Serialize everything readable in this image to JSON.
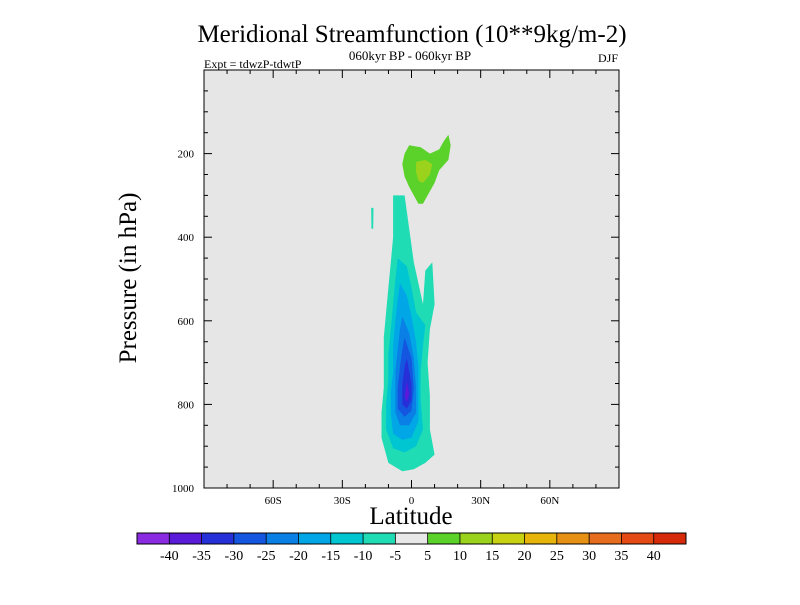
{
  "chart_data": {
    "type": "contour",
    "title": "Meridional Streamfunction (10**9kg/m-2)",
    "subtitle": "060kyr BP - 060kyr BP",
    "left_label": "Expt = tdwzP-tdwtP",
    "right_label": "DJF",
    "xlabel": "Latitude",
    "ylabel": "Pressure (in hPa)",
    "x_range": [
      -90,
      90
    ],
    "y_range": [
      0,
      1000
    ],
    "y_inverted": true,
    "x_ticks": [
      {
        "value": -60,
        "label": "60S"
      },
      {
        "value": -30,
        "label": "30S"
      },
      {
        "value": 0,
        "label": "0"
      },
      {
        "value": 30,
        "label": "30N"
      },
      {
        "value": 60,
        "label": "60N"
      }
    ],
    "y_ticks": [
      {
        "value": 200,
        "label": "200"
      },
      {
        "value": 400,
        "label": "400"
      },
      {
        "value": 600,
        "label": "600"
      },
      {
        "value": 800,
        "label": "800"
      },
      {
        "value": 1000,
        "label": "1000"
      }
    ],
    "background_color": "#e6e6e6",
    "contour_levels": [
      -40,
      -35,
      -30,
      -25,
      -20,
      -15,
      -10,
      -5,
      5,
      10,
      15,
      20,
      25,
      30,
      35,
      40
    ],
    "colorbar_colors": [
      "#8a2be2",
      "#5a1ad9",
      "#2630d9",
      "#1456e0",
      "#0a7fe6",
      "#00a6e6",
      "#00c6d2",
      "#20dcb4",
      "#e8e8e8",
      "#5ad22a",
      "#9ad21c",
      "#c8d212",
      "#e6b40a",
      "#e69114",
      "#e66d1e",
      "#e64a14",
      "#d62a0a"
    ],
    "colorbar_labels": [
      "-40",
      "-35",
      "-30",
      "-25",
      "-20",
      "-15",
      "-10",
      "-5",
      "5",
      "10",
      "15",
      "20",
      "25",
      "30",
      "35",
      "40"
    ],
    "features": [
      {
        "name": "tropical-negative-cell",
        "level_colors": [
          "#20dcb4",
          "#00c6d2",
          "#00a6e6",
          "#0a7fe6",
          "#1456e0",
          "#2630d9",
          "#5a1ad9"
        ],
        "center_lat": -2,
        "center_p": 775,
        "min_value": -37
      },
      {
        "name": "upper-positive-cell",
        "level_colors": [
          "#5ad22a",
          "#9ad21c"
        ],
        "center_lat": 5,
        "center_p": 240,
        "max_value": 14
      },
      {
        "name": "small-negative-sliver",
        "level_colors": [
          "#20dcb4"
        ],
        "center_lat": -17,
        "center_p": 355,
        "min_value": -7
      }
    ]
  }
}
